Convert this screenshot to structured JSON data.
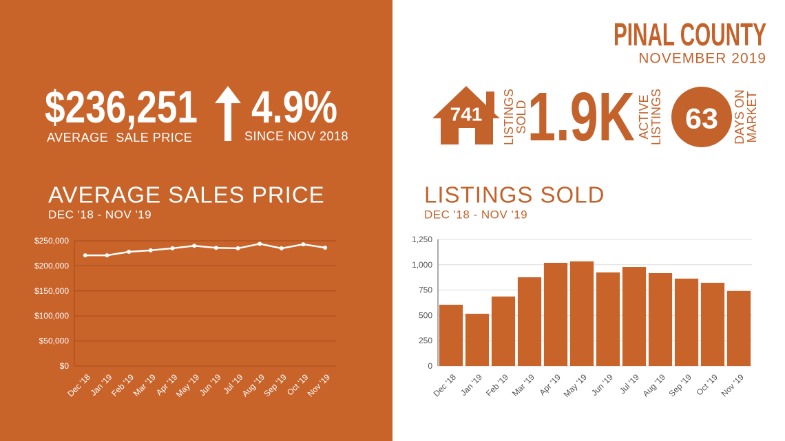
{
  "header": {
    "title": "PINAL COUNTY",
    "subtitle": "NOVEMBER 2019"
  },
  "stats": {
    "avg_price": {
      "value": "$236,251",
      "label": "AVERAGE  SALE PRICE"
    },
    "change": {
      "value": "4.9%",
      "label": "SINCE NOV 2018"
    },
    "listings_sold": {
      "value": "741",
      "label": [
        "LISTINGS",
        "SOLD"
      ]
    },
    "active_listings": {
      "value": "1.9K",
      "label": [
        "ACTIVE",
        "LISTINGS"
      ]
    },
    "days_on_market": {
      "value": "63",
      "label": [
        "DAYS ON",
        "MARKET"
      ]
    }
  },
  "chart_data": [
    {
      "type": "line",
      "title": "AVERAGE SALES PRICE",
      "subtitle": "DEC '18 - NOV '19",
      "categories": [
        "Dec '18",
        "Jan '19",
        "Feb '19",
        "Mar '19",
        "Apr '19",
        "May '19",
        "Jun '19",
        "Jul '19",
        "Aug '19",
        "Sep '19",
        "Oct '19",
        "Nov '19"
      ],
      "values": [
        221000,
        221000,
        228000,
        231000,
        235000,
        240000,
        236000,
        235000,
        244000,
        235000,
        243000,
        236251
      ],
      "color": "#ffffff",
      "ylim": [
        0,
        250000
      ],
      "yticks": [
        {
          "value": 0,
          "label": "$0"
        },
        {
          "value": 50000,
          "label": "$50,000"
        },
        {
          "value": 100000,
          "label": "$100,000"
        },
        {
          "value": 150000,
          "label": "$150,000"
        },
        {
          "value": 200000,
          "label": "$200,000"
        },
        {
          "value": 250000,
          "label": "$250,000"
        }
      ],
      "grid": true
    },
    {
      "type": "bar",
      "title": "LISTINGS SOLD",
      "subtitle": "DEC '18 - NOV '19",
      "categories": [
        "Dec '18",
        "Jan '19",
        "Feb '19",
        "Mar '19",
        "Apr '19",
        "May '19",
        "Jun '19",
        "Jul '19",
        "Aug '19",
        "Sep '19",
        "Oct '19",
        "Nov '19"
      ],
      "values": [
        605,
        516,
        686,
        876,
        1019,
        1033,
        924,
        978,
        917,
        863,
        822,
        741
      ],
      "color": "#c8632a",
      "ylim": [
        0,
        1250
      ],
      "yticks": [
        0,
        250,
        500,
        750,
        {
          "value": 1000,
          "label": "1,000"
        },
        {
          "value": 1250,
          "label": "1,250"
        }
      ],
      "grid": true
    }
  ]
}
